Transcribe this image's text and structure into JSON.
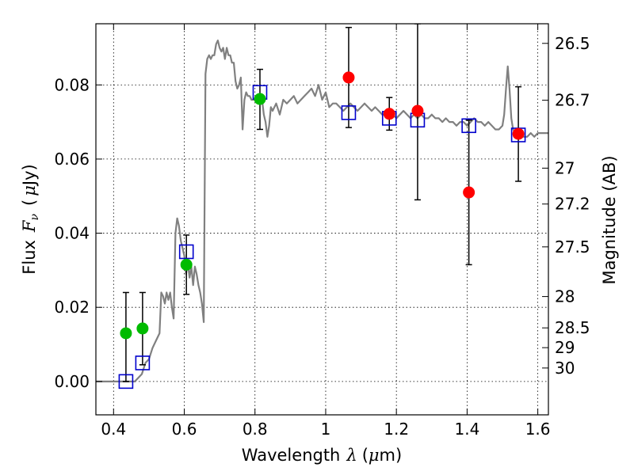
{
  "chart_data": {
    "type": "scatter",
    "xlabel_text": "Wavelength",
    "xlabel_symbol": "λ",
    "xlabel_unit_open": "(",
    "xlabel_unit_mu": "μ",
    "xlabel_unit_close": "m)",
    "ylabel_text": "Flux",
    "ylabel_symbol_main": "F",
    "ylabel_symbol_sub": "ν",
    "ylabel_unit_open": "(",
    "ylabel_unit_mu": "μ",
    "ylabel_unit_close": "Jy)",
    "y2label": "Magnitude (AB)",
    "xlim": [
      0.35,
      1.63
    ],
    "ylim": [
      -0.009,
      0.0965
    ],
    "xticks": [
      {
        "value": 0.4,
        "label": "0.4"
      },
      {
        "value": 0.6,
        "label": "0.6"
      },
      {
        "value": 0.8,
        "label": "0.8"
      },
      {
        "value": 1.0,
        "label": "1"
      },
      {
        "value": 1.2,
        "label": "1.2"
      },
      {
        "value": 1.4,
        "label": "1.4"
      },
      {
        "value": 1.6,
        "label": "1.6"
      }
    ],
    "yticks": [
      {
        "value": 0.0,
        "label": "0.00"
      },
      {
        "value": 0.02,
        "label": "0.02"
      },
      {
        "value": 0.04,
        "label": "0.04"
      },
      {
        "value": 0.06,
        "label": "0.06"
      },
      {
        "value": 0.08,
        "label": "0.08"
      }
    ],
    "mag_ticks": [
      {
        "value": 26.5,
        "label": "26.5"
      },
      {
        "value": 26.7,
        "label": "26.7"
      },
      {
        "value": 27.0,
        "label": "27"
      },
      {
        "value": 27.2,
        "label": "27.2"
      },
      {
        "value": 27.5,
        "label": "27.5"
      },
      {
        "value": 28.0,
        "label": "28"
      },
      {
        "value": 28.5,
        "label": "28.5"
      },
      {
        "value": 29.0,
        "label": "29"
      },
      {
        "value": 30.0,
        "label": "30"
      }
    ],
    "grid": true,
    "colors": {
      "model": "#808080",
      "green": "#00bb00",
      "red": "#ff0000",
      "square": "#0000cc",
      "errorbar": "#000000"
    },
    "model_spectrum": [
      [
        0.35,
        0.0
      ],
      [
        0.44,
        0.0
      ],
      [
        0.46,
        0.0
      ],
      [
        0.48,
        0.002
      ],
      [
        0.49,
        0.005
      ],
      [
        0.5,
        0.006
      ],
      [
        0.51,
        0.009
      ],
      [
        0.52,
        0.011
      ],
      [
        0.53,
        0.013
      ],
      [
        0.535,
        0.024
      ],
      [
        0.54,
        0.023
      ],
      [
        0.545,
        0.021
      ],
      [
        0.55,
        0.024
      ],
      [
        0.555,
        0.022
      ],
      [
        0.56,
        0.024
      ],
      [
        0.565,
        0.02
      ],
      [
        0.57,
        0.017
      ],
      [
        0.575,
        0.04
      ],
      [
        0.58,
        0.044
      ],
      [
        0.585,
        0.042
      ],
      [
        0.59,
        0.038
      ],
      [
        0.595,
        0.036
      ],
      [
        0.6,
        0.034
      ],
      [
        0.605,
        0.029
      ],
      [
        0.61,
        0.032
      ],
      [
        0.615,
        0.028
      ],
      [
        0.62,
        0.031
      ],
      [
        0.625,
        0.026
      ],
      [
        0.63,
        0.031
      ],
      [
        0.635,
        0.029
      ],
      [
        0.64,
        0.026
      ],
      [
        0.645,
        0.024
      ],
      [
        0.65,
        0.021
      ],
      [
        0.655,
        0.016
      ],
      [
        0.66,
        0.083
      ],
      [
        0.665,
        0.087
      ],
      [
        0.67,
        0.088
      ],
      [
        0.675,
        0.087
      ],
      [
        0.68,
        0.088
      ],
      [
        0.685,
        0.088
      ],
      [
        0.69,
        0.091
      ],
      [
        0.695,
        0.092
      ],
      [
        0.7,
        0.09
      ],
      [
        0.705,
        0.089
      ],
      [
        0.71,
        0.09
      ],
      [
        0.715,
        0.087
      ],
      [
        0.72,
        0.09
      ],
      [
        0.725,
        0.088
      ],
      [
        0.73,
        0.088
      ],
      [
        0.735,
        0.086
      ],
      [
        0.74,
        0.086
      ],
      [
        0.745,
        0.081
      ],
      [
        0.75,
        0.079
      ],
      [
        0.755,
        0.08
      ],
      [
        0.76,
        0.082
      ],
      [
        0.765,
        0.068
      ],
      [
        0.77,
        0.076
      ],
      [
        0.775,
        0.078
      ],
      [
        0.78,
        0.077
      ],
      [
        0.785,
        0.077
      ],
      [
        0.79,
        0.076
      ],
      [
        0.8,
        0.076
      ],
      [
        0.81,
        0.077
      ],
      [
        0.82,
        0.076
      ],
      [
        0.825,
        0.072
      ],
      [
        0.83,
        0.07
      ],
      [
        0.835,
        0.066
      ],
      [
        0.84,
        0.069
      ],
      [
        0.845,
        0.074
      ],
      [
        0.85,
        0.073
      ],
      [
        0.86,
        0.075
      ],
      [
        0.87,
        0.072
      ],
      [
        0.88,
        0.076
      ],
      [
        0.89,
        0.075
      ],
      [
        0.9,
        0.076
      ],
      [
        0.91,
        0.077
      ],
      [
        0.92,
        0.075
      ],
      [
        0.93,
        0.076
      ],
      [
        0.94,
        0.077
      ],
      [
        0.95,
        0.078
      ],
      [
        0.96,
        0.079
      ],
      [
        0.97,
        0.077
      ],
      [
        0.98,
        0.08
      ],
      [
        0.99,
        0.076
      ],
      [
        1.0,
        0.078
      ],
      [
        1.01,
        0.074
      ],
      [
        1.02,
        0.075
      ],
      [
        1.03,
        0.075
      ],
      [
        1.04,
        0.074
      ],
      [
        1.05,
        0.073
      ],
      [
        1.06,
        0.074
      ],
      [
        1.07,
        0.075
      ],
      [
        1.08,
        0.074
      ],
      [
        1.09,
        0.073
      ],
      [
        1.1,
        0.074
      ],
      [
        1.11,
        0.075
      ],
      [
        1.12,
        0.074
      ],
      [
        1.13,
        0.073
      ],
      [
        1.14,
        0.074
      ],
      [
        1.15,
        0.073
      ],
      [
        1.16,
        0.072
      ],
      [
        1.17,
        0.072
      ],
      [
        1.18,
        0.073
      ],
      [
        1.19,
        0.072
      ],
      [
        1.2,
        0.071
      ],
      [
        1.21,
        0.072
      ],
      [
        1.22,
        0.073
      ],
      [
        1.23,
        0.072
      ],
      [
        1.24,
        0.071
      ],
      [
        1.25,
        0.072
      ],
      [
        1.26,
        0.071
      ],
      [
        1.27,
        0.072
      ],
      [
        1.28,
        0.071
      ],
      [
        1.29,
        0.071
      ],
      [
        1.3,
        0.072
      ],
      [
        1.31,
        0.071
      ],
      [
        1.32,
        0.071
      ],
      [
        1.33,
        0.07
      ],
      [
        1.34,
        0.071
      ],
      [
        1.35,
        0.07
      ],
      [
        1.36,
        0.07
      ],
      [
        1.37,
        0.069
      ],
      [
        1.38,
        0.07
      ],
      [
        1.39,
        0.07
      ],
      [
        1.4,
        0.069
      ],
      [
        1.41,
        0.07
      ],
      [
        1.42,
        0.071
      ],
      [
        1.43,
        0.07
      ],
      [
        1.44,
        0.07
      ],
      [
        1.45,
        0.069
      ],
      [
        1.46,
        0.07
      ],
      [
        1.47,
        0.069
      ],
      [
        1.48,
        0.068
      ],
      [
        1.49,
        0.068
      ],
      [
        1.5,
        0.069
      ],
      [
        1.505,
        0.072
      ],
      [
        1.51,
        0.079
      ],
      [
        1.515,
        0.085
      ],
      [
        1.52,
        0.079
      ],
      [
        1.525,
        0.071
      ],
      [
        1.53,
        0.068
      ],
      [
        1.54,
        0.067
      ],
      [
        1.55,
        0.067
      ],
      [
        1.56,
        0.066
      ],
      [
        1.57,
        0.066
      ],
      [
        1.58,
        0.067
      ],
      [
        1.59,
        0.066
      ],
      [
        1.6,
        0.067
      ],
      [
        1.61,
        0.067
      ],
      [
        1.63,
        0.067
      ]
    ],
    "model_photometry": [
      {
        "x": 0.435,
        "y": 0.0
      },
      {
        "x": 0.482,
        "y": 0.005
      },
      {
        "x": 0.606,
        "y": 0.035
      },
      {
        "x": 0.814,
        "y": 0.078
      },
      {
        "x": 1.065,
        "y": 0.0725
      },
      {
        "x": 1.18,
        "y": 0.071
      },
      {
        "x": 1.26,
        "y": 0.0705
      },
      {
        "x": 1.405,
        "y": 0.069
      },
      {
        "x": 1.545,
        "y": 0.0665
      }
    ],
    "observed_green": [
      {
        "x": 0.435,
        "y": 0.013,
        "ylo": 0.0,
        "yhi": 0.024
      },
      {
        "x": 0.482,
        "y": 0.0143,
        "ylo": 0.0045,
        "yhi": 0.024
      },
      {
        "x": 0.606,
        "y": 0.0315,
        "ylo": 0.0235,
        "yhi": 0.0395
      },
      {
        "x": 0.814,
        "y": 0.0762,
        "ylo": 0.068,
        "yhi": 0.0842
      }
    ],
    "observed_red": [
      {
        "x": 1.065,
        "y": 0.082,
        "ylo": 0.0685,
        "yhi": 0.0955
      },
      {
        "x": 1.18,
        "y": 0.0722,
        "ylo": 0.0678,
        "yhi": 0.0766
      },
      {
        "x": 1.26,
        "y": 0.073,
        "ylo": 0.049,
        "yhi": 0.0965
      },
      {
        "x": 1.405,
        "y": 0.051,
        "ylo": 0.0315,
        "yhi": 0.0705
      },
      {
        "x": 1.545,
        "y": 0.0668,
        "ylo": 0.054,
        "yhi": 0.0795
      }
    ]
  }
}
